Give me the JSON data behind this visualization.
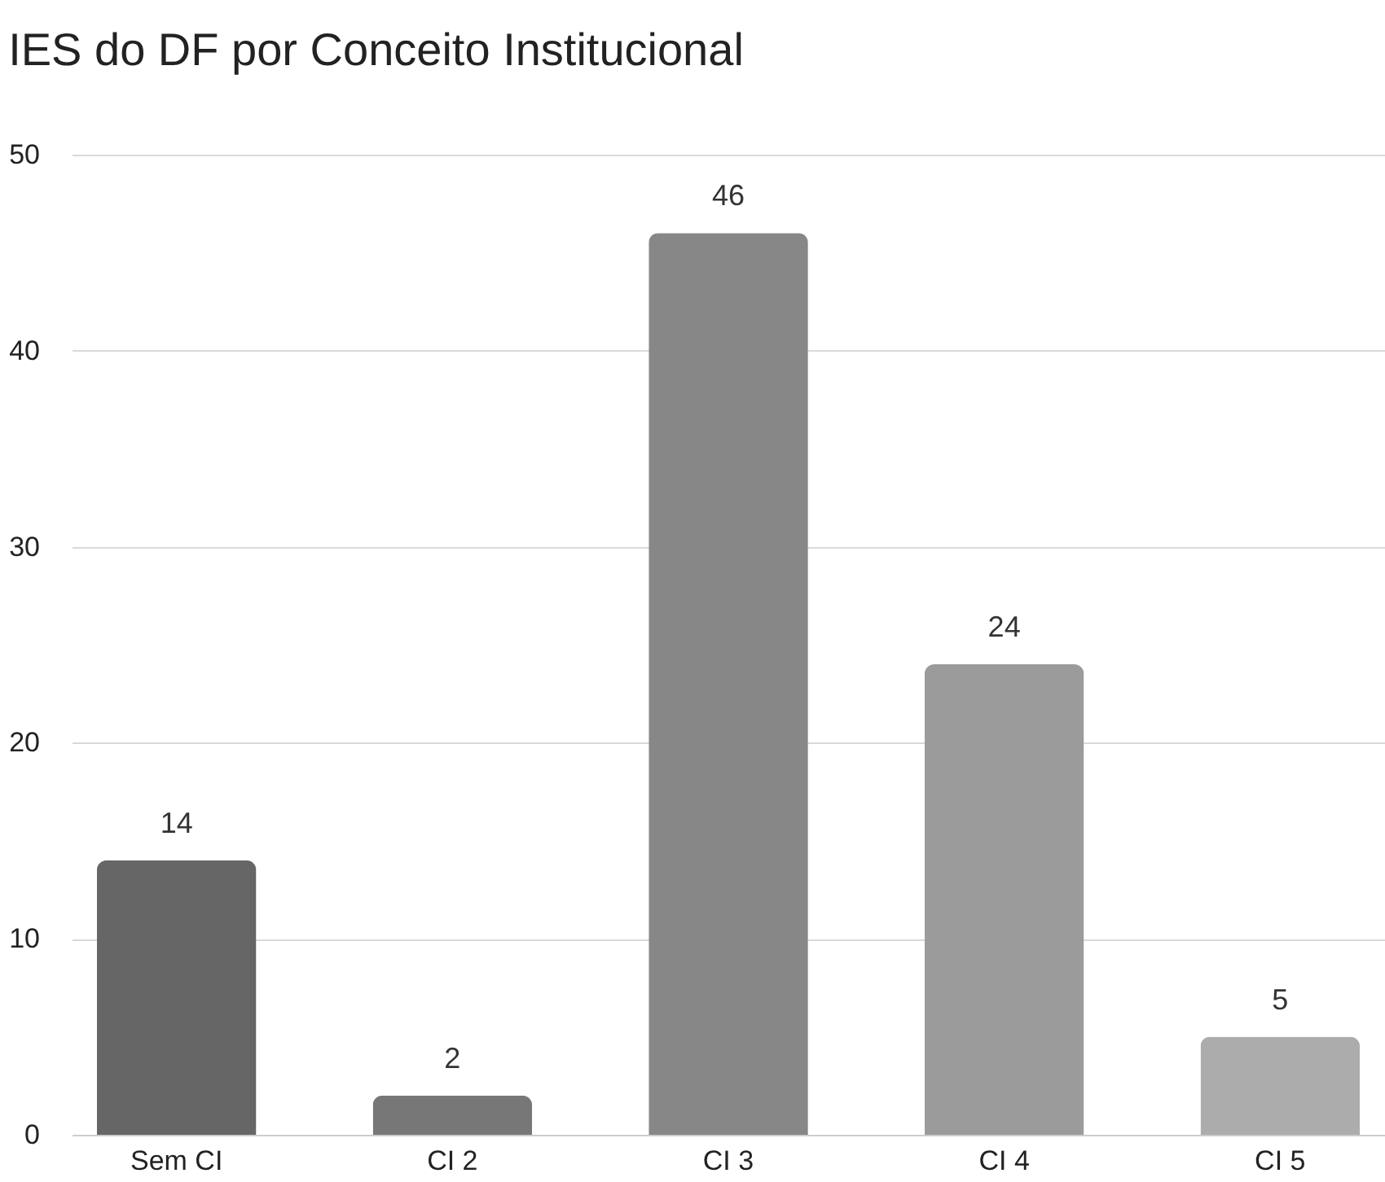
{
  "chart_data": {
    "type": "bar",
    "title": "IES do DF por Conceito Institucional",
    "categories": [
      "Sem CI",
      "CI 2",
      "CI 3",
      "CI 4",
      "CI 5"
    ],
    "values": [
      14,
      2,
      46,
      24,
      5
    ],
    "colors": [
      "#666666",
      "#777777",
      "#878787",
      "#9b9b9b",
      "#acacac"
    ],
    "ylim": [
      0,
      50
    ],
    "yticks": [
      0,
      10,
      20,
      30,
      40,
      50
    ],
    "grid": "y",
    "data_labels": true
  }
}
